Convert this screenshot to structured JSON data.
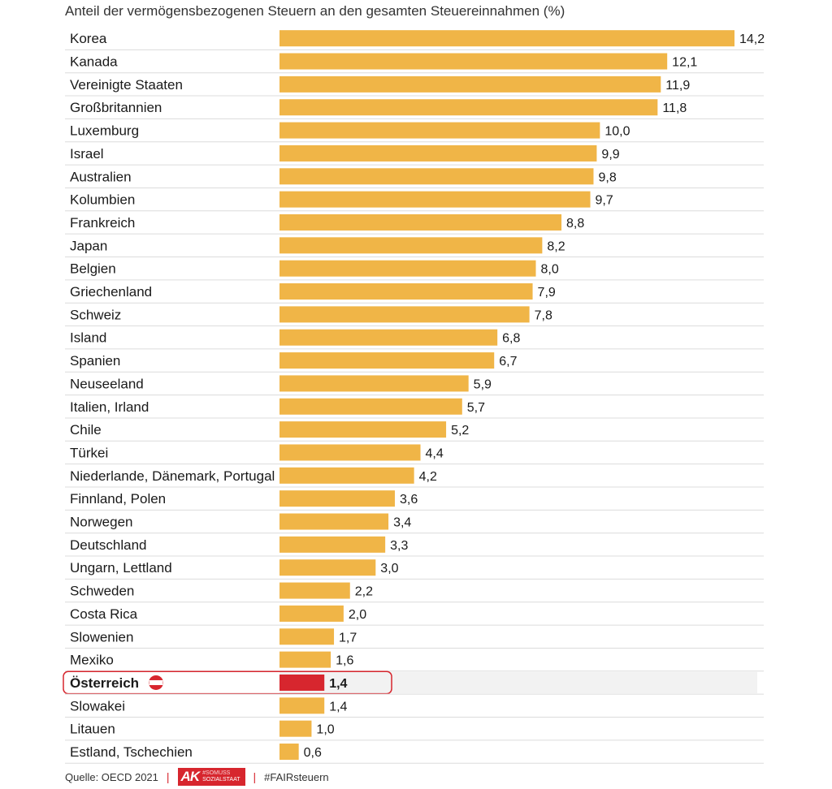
{
  "chart_data": {
    "type": "bar",
    "orientation": "horizontal",
    "title": "Anteil der vermögensbezogenen Steuern an den gesamten Steuereinnahmen (%)",
    "categories": [
      "Korea",
      "Kanada",
      "Vereinigte Staaten",
      "Großbritannien",
      "Luxemburg",
      "Israel",
      "Australien",
      "Kolumbien",
      "Frankreich",
      "Japan",
      "Belgien",
      "Griechenland",
      "Schweiz",
      "Island",
      "Spanien",
      "Neuseeland",
      "Italien, Irland",
      "Chile",
      "Türkei",
      "Niederlande, Dänemark, Portugal",
      "Finnland, Polen",
      "Norwegen",
      "Deutschland",
      "Ungarn, Lettland",
      "Schweden",
      "Costa Rica",
      "Slowenien",
      "Mexiko",
      "Österreich",
      "Slowakei",
      "Litauen",
      "Estland, Tschechien"
    ],
    "values": [
      14.2,
      12.1,
      11.9,
      11.8,
      10.0,
      9.9,
      9.8,
      9.7,
      8.8,
      8.2,
      8.0,
      7.9,
      7.8,
      6.8,
      6.7,
      5.9,
      5.7,
      5.2,
      4.4,
      4.2,
      3.6,
      3.4,
      3.3,
      3.0,
      2.2,
      2.0,
      1.7,
      1.6,
      1.4,
      1.4,
      1.0,
      0.6
    ],
    "value_labels": [
      "14,2",
      "12,1",
      "11,9",
      "11,8",
      "10,0",
      "9,9",
      "9,8",
      "9,7",
      "8,8",
      "8,2",
      "8,0",
      "7,9",
      "7,8",
      "6,8",
      "6,7",
      "5,9",
      "5,7",
      "5,2",
      "4,4",
      "4,2",
      "3,6",
      "3,4",
      "3,3",
      "3,0",
      "2,2",
      "2,0",
      "1,7",
      "1,6",
      "1,4",
      "1,4",
      "1,0",
      "0,6"
    ],
    "highlight_category": "Österreich",
    "xlim": [
      0,
      14.2
    ],
    "grid": false,
    "legend": "none",
    "colors": {
      "bar": "#f0b547",
      "highlight": "#d7262e",
      "highlight_row_bg": "#f2f2f2",
      "row_divider": "#dcdcdc"
    }
  },
  "footer": {
    "source": "Quelle: OECD 2021",
    "logo_letters": "AK",
    "logo_line1": "#SOMUSS",
    "logo_line2": "SOZIALSTAAT",
    "hashtag": "#FAIRsteuern",
    "separator": "|"
  }
}
